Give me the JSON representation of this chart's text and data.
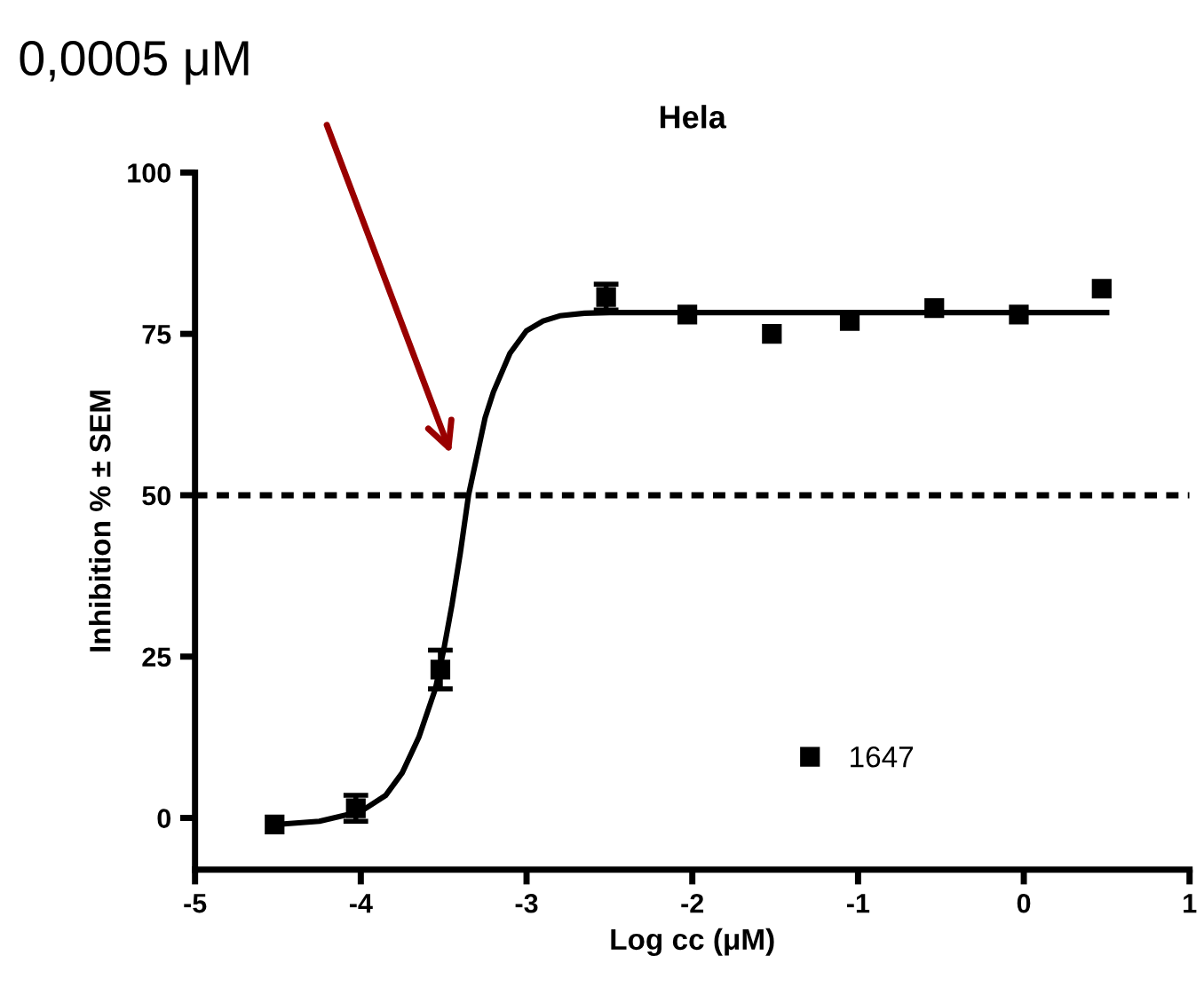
{
  "chart_data": {
    "type": "scatter",
    "title": "Hela",
    "xlabel": "Log cc (μM)",
    "ylabel": "Inhibition % ± SEM",
    "xlim": [
      -5,
      1
    ],
    "xticks": [
      -5,
      -4,
      -3,
      -2,
      -1,
      0,
      1
    ],
    "ylim": [
      -8,
      100
    ],
    "yticks": [
      0,
      25,
      50,
      75,
      100
    ],
    "grid": false,
    "legend": "lower right",
    "marker": "square",
    "series": [
      {
        "name": "1647",
        "color": "#000000",
        "x": [
          -4.52,
          -4.03,
          -3.52,
          -2.52,
          -2.03,
          -1.52,
          -1.05,
          -0.54,
          -0.03,
          0.47
        ],
        "values": [
          -1,
          1.5,
          23,
          80.7,
          78,
          75,
          77,
          79,
          78,
          82
        ],
        "errors": [
          null,
          2,
          3,
          2,
          null,
          null,
          null,
          null,
          null,
          null
        ]
      },
      {
        "type": "line",
        "color": "#000000",
        "marker": "none",
        "line_style": "solid",
        "x": [
          -4.5,
          -4.25,
          -4.0,
          -3.85,
          -3.75,
          -3.65,
          -3.55,
          -3.5,
          -3.45,
          -3.4,
          -3.35,
          -3.3,
          -3.25,
          -3.2,
          -3.1,
          -3.0,
          -2.9,
          -2.8,
          -2.65,
          -2.5,
          -2.0,
          -1.0,
          0.0,
          0.5
        ],
        "values": [
          -1,
          -0.5,
          1,
          3.5,
          7,
          12.5,
          20,
          26,
          33,
          41,
          50,
          56,
          62,
          66,
          72,
          75.5,
          77,
          77.8,
          78.2,
          78.3,
          78.3,
          78.3,
          78.3,
          78.3
        ]
      }
    ],
    "ref_lines": [
      {
        "axis": "y",
        "value": 50,
        "line_style": "dotted",
        "color": "#000000"
      }
    ],
    "annotations": [
      "0,0005 μM"
    ]
  }
}
